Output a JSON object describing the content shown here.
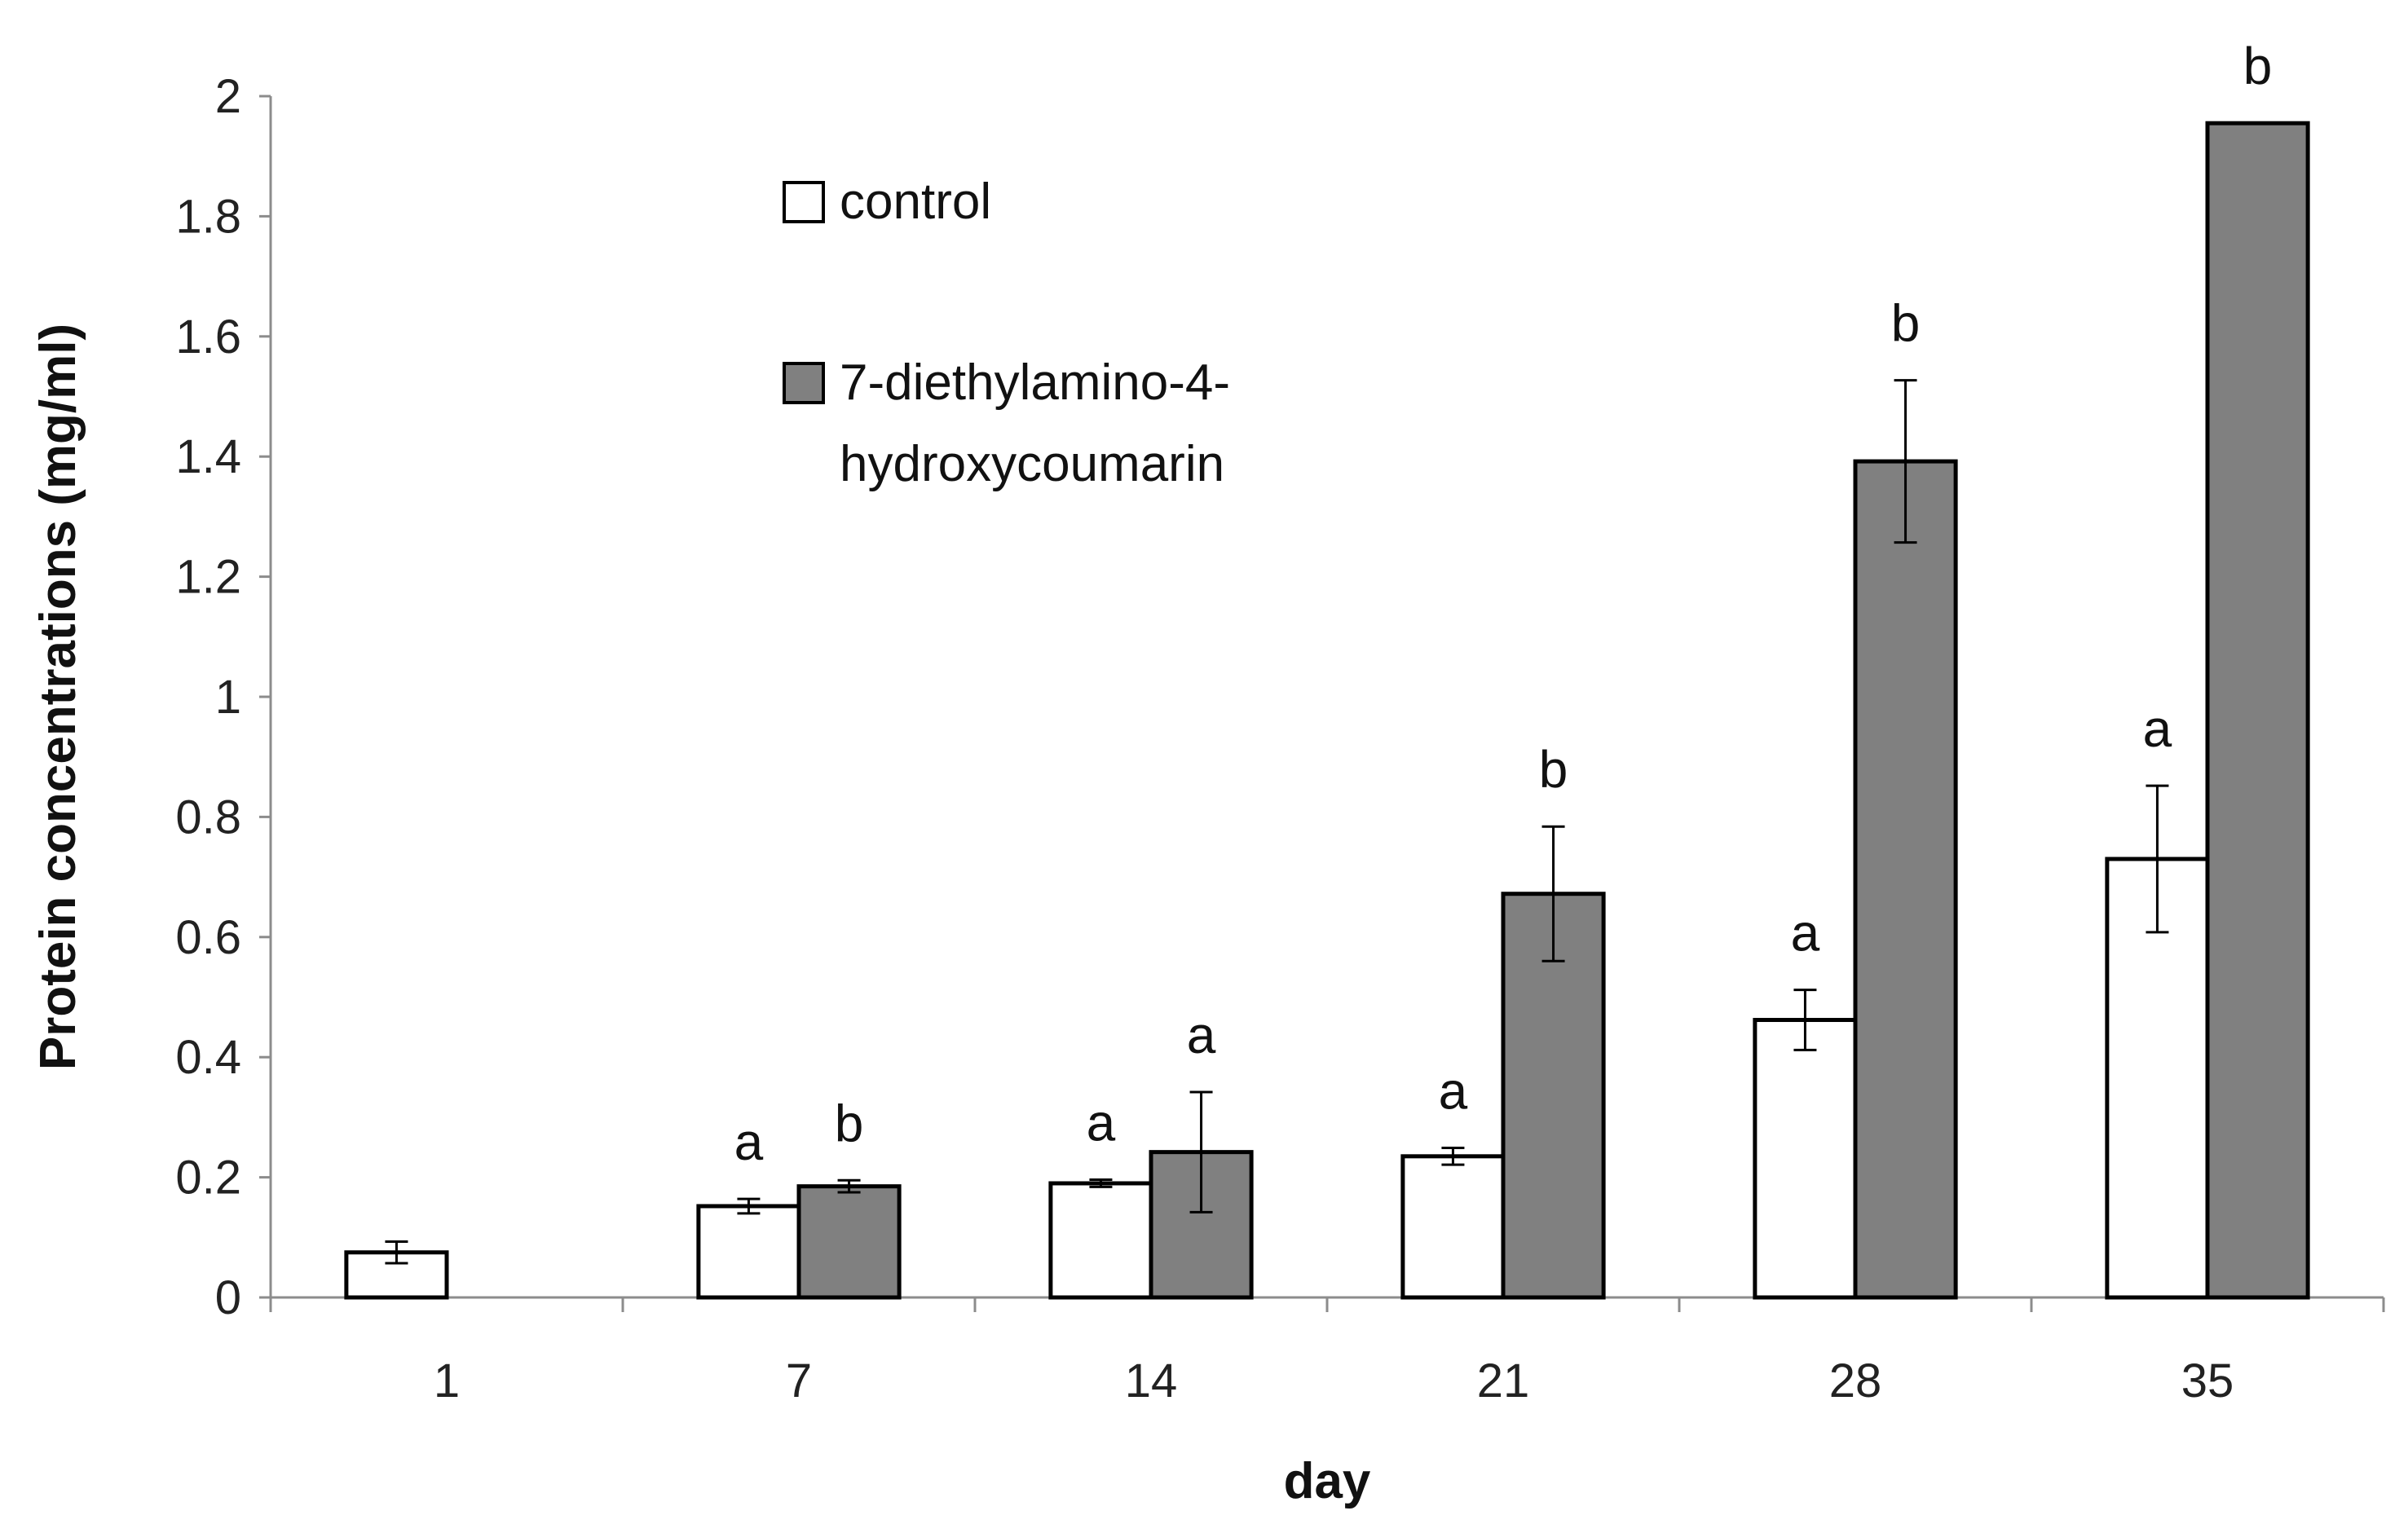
{
  "chart_data": {
    "type": "bar",
    "title": "",
    "xlabel": "day",
    "ylabel": "Protein concentrations (mg/ml)",
    "ylim": [
      0,
      2
    ],
    "yticks": [
      0,
      0.2,
      0.4,
      0.6,
      0.8,
      1,
      1.2,
      1.4,
      1.6,
      1.8,
      2
    ],
    "ytick_labels": [
      "0",
      "0.2",
      "0.4",
      "0.6",
      "0.8",
      "1",
      "1.2",
      "1.4",
      "1.6",
      "1.8",
      "2"
    ],
    "grid": false,
    "legend_position": "top-center",
    "categories": [
      "1",
      "7",
      "14",
      "21",
      "28",
      "35"
    ],
    "series": [
      {
        "name": "control",
        "color": "#ffffff",
        "values": [
          0.075,
          0.152,
          0.19,
          0.235,
          0.462,
          0.73
        ],
        "errors": [
          0.018,
          0.012,
          0.006,
          0.014,
          0.05,
          0.122
        ],
        "significance": [
          null,
          "a",
          "a",
          "a",
          "a",
          "a"
        ]
      },
      {
        "name": "7-diethylamino-4-hydroxycoumarin",
        "legend_lines": [
          "7-diethylamino-4-",
          "hydroxycoumarin"
        ],
        "color": "#808080",
        "values": [
          null,
          0.185,
          0.242,
          0.672,
          1.392,
          1.955
        ],
        "errors": [
          null,
          0.01,
          0.1,
          0.112,
          0.135,
          0
        ],
        "significance": [
          null,
          "b",
          "a",
          "b",
          "b",
          "b"
        ]
      }
    ]
  }
}
